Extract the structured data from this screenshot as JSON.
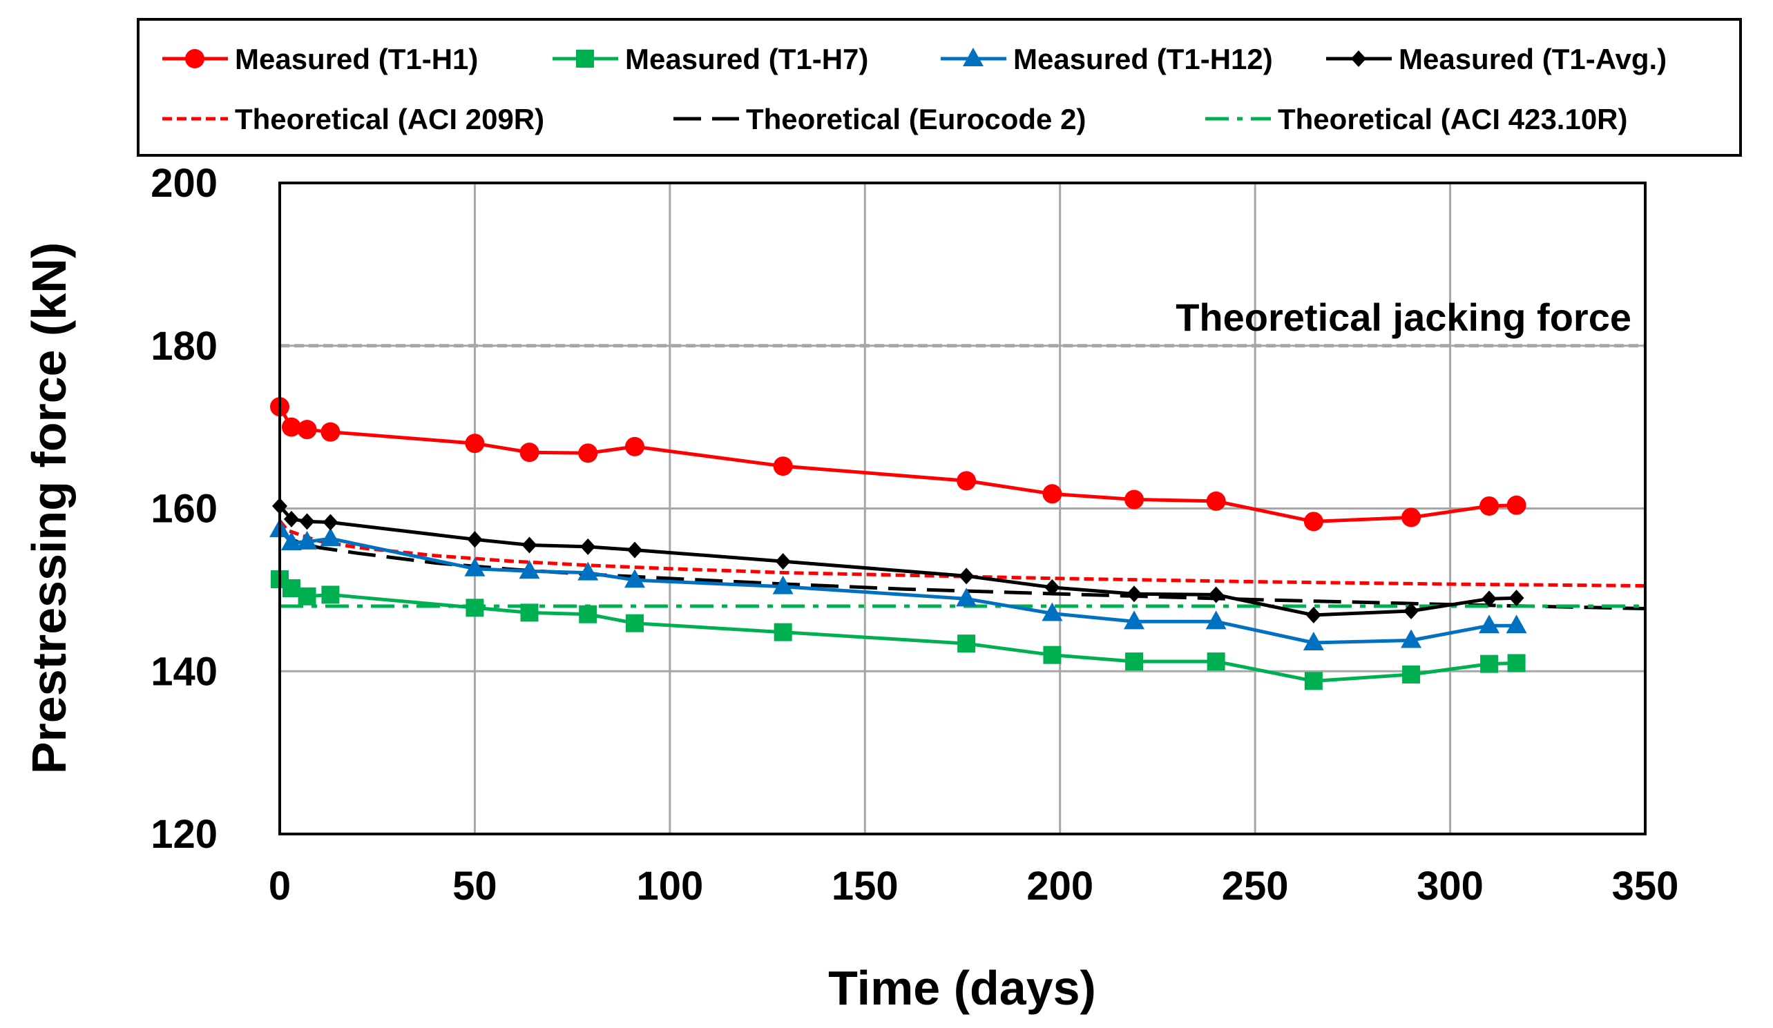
{
  "chart_data": {
    "type": "line",
    "xlabel": "Time (days)",
    "ylabel": "Prestressing force (kN)",
    "xlim": [
      0,
      350
    ],
    "ylim": [
      120,
      200
    ],
    "xticks": [
      0,
      50,
      100,
      150,
      200,
      250,
      300,
      350
    ],
    "yticks": [
      120,
      140,
      160,
      180,
      200
    ],
    "grid": true,
    "legend_position": "top",
    "annotations": [
      {
        "text": "Theoretical jacking force",
        "y": 180,
        "color": "#a6a6a6",
        "style": "dashed"
      }
    ],
    "series": [
      {
        "name": "Measured (T1-H1)",
        "color": "#ff0000",
        "marker": "circle",
        "style": "solid",
        "x": [
          0,
          3,
          7,
          13,
          50,
          64,
          79,
          91,
          129,
          176,
          198,
          219,
          240,
          265,
          290,
          310,
          317
        ],
        "y": [
          172.5,
          170.0,
          169.7,
          169.4,
          168.0,
          166.9,
          166.8,
          167.6,
          165.2,
          163.4,
          161.8,
          161.1,
          160.9,
          158.4,
          158.9,
          160.3,
          160.4
        ]
      },
      {
        "name": "Measured (T1-H7)",
        "color": "#00b050",
        "marker": "square",
        "style": "solid",
        "x": [
          0,
          3,
          7,
          13,
          50,
          64,
          79,
          91,
          129,
          176,
          198,
          219,
          240,
          265,
          290,
          310,
          317
        ],
        "y": [
          151.3,
          150.2,
          149.2,
          149.4,
          147.8,
          147.2,
          147.0,
          145.9,
          144.8,
          143.4,
          142.0,
          141.2,
          141.2,
          138.8,
          139.6,
          140.9,
          141.0
        ]
      },
      {
        "name": "Measured (T1-H12)",
        "color": "#0070c0",
        "marker": "triangle",
        "style": "solid",
        "x": [
          0,
          3,
          7,
          13,
          50,
          64,
          79,
          91,
          129,
          176,
          198,
          219,
          240,
          265,
          290,
          310,
          317
        ],
        "y": [
          157.4,
          155.8,
          155.9,
          156.3,
          152.6,
          152.3,
          152.1,
          151.2,
          150.4,
          148.9,
          147.1,
          146.1,
          146.1,
          143.5,
          143.8,
          145.6,
          145.6
        ]
      },
      {
        "name": "Measured (T1-Avg.)",
        "color": "#000000",
        "marker": "diamond",
        "style": "solid",
        "x": [
          0,
          3,
          7,
          13,
          50,
          64,
          79,
          91,
          129,
          176,
          198,
          219,
          240,
          265,
          290,
          310,
          317
        ],
        "y": [
          160.3,
          158.7,
          158.4,
          158.3,
          156.2,
          155.5,
          155.3,
          154.9,
          153.5,
          151.7,
          150.3,
          149.5,
          149.4,
          146.9,
          147.4,
          148.9,
          149.0
        ]
      },
      {
        "name": "Theoretical (ACI 209R)",
        "color": "#ff0000",
        "marker": "none",
        "style": "dotted",
        "x": [
          0,
          2,
          5,
          10,
          20,
          40,
          60,
          80,
          100,
          130,
          160,
          200,
          250,
          300,
          350
        ],
        "y": [
          158.5,
          157.3,
          156.8,
          156.0,
          155.2,
          154.2,
          153.5,
          153.0,
          152.6,
          152.1,
          151.8,
          151.4,
          151.0,
          150.7,
          150.5
        ]
      },
      {
        "name": "Theoretical (Eurocode 2)",
        "color": "#000000",
        "marker": "none",
        "style": "dashed",
        "x": [
          0,
          2,
          5,
          10,
          20,
          40,
          60,
          80,
          100,
          130,
          160,
          200,
          250,
          300,
          350
        ],
        "y": [
          158.0,
          156.5,
          155.8,
          155.2,
          154.5,
          153.3,
          152.5,
          151.9,
          151.4,
          150.7,
          150.1,
          149.5,
          148.8,
          148.2,
          147.7
        ]
      },
      {
        "name": "Theoretical (ACI 423.10R)",
        "color": "#00b050",
        "marker": "none",
        "style": "dashdot",
        "x": [
          0,
          350
        ],
        "y": [
          148.0,
          148.0
        ]
      }
    ]
  }
}
